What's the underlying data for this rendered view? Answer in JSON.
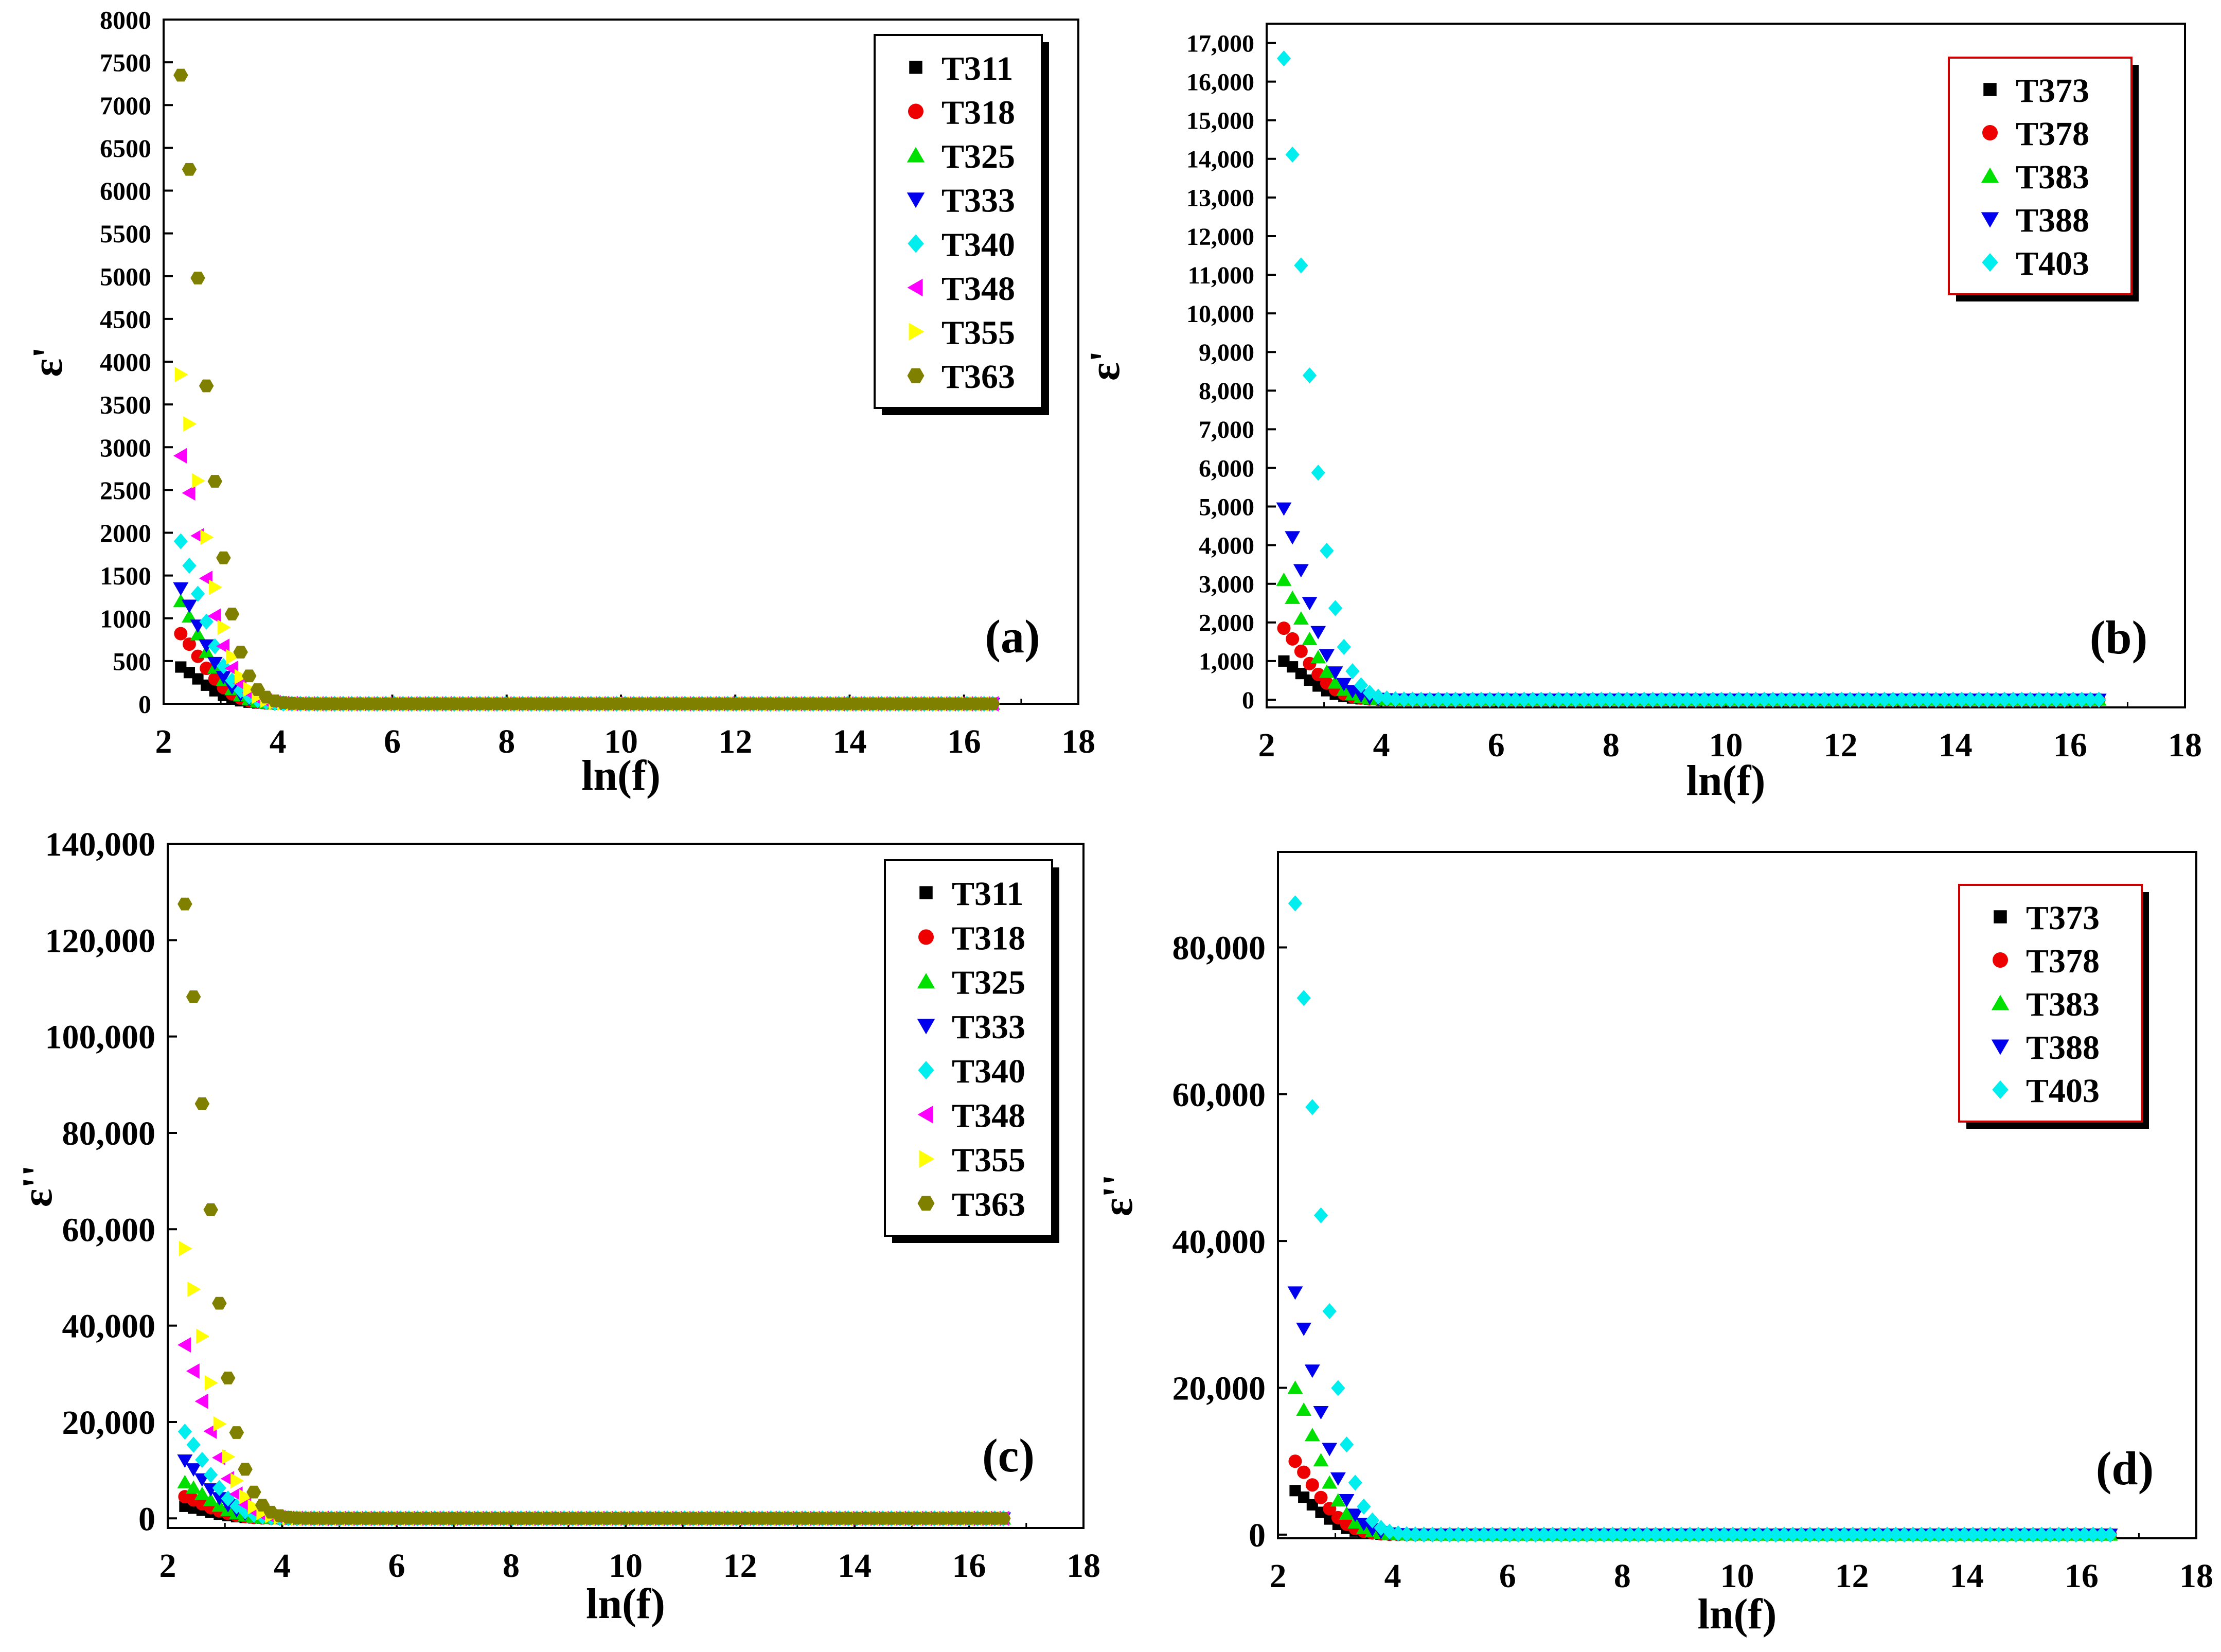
{
  "figure": {
    "panel_count": 4
  },
  "colors": {
    "T311": "#000000",
    "T318": "#ee0000",
    "T325": "#00e000",
    "T333": "#0000ee",
    "T340": "#00eeee",
    "T348": "#ff00ff",
    "T355": "#ffff00",
    "T363": "#808000",
    "T373": "#000000",
    "T378": "#ee0000",
    "T383": "#00e000",
    "T388": "#0000ee",
    "T403": "#00eeee"
  },
  "chart_data": [
    {
      "panel": "a",
      "label": "(a)",
      "type": "scatter",
      "xlabel": "ln(f)",
      "ylabel": "ε'",
      "xlim": [
        2,
        18
      ],
      "ylim": [
        0,
        8000
      ],
      "xticks": [
        "2",
        "4",
        "6",
        "8",
        "10",
        "12",
        "14",
        "16",
        "18"
      ],
      "yticks": [
        "0",
        "500",
        "1000",
        "1500",
        "2000",
        "2500",
        "3000",
        "3500",
        "4000",
        "4500",
        "5000",
        "5500",
        "6000",
        "6500",
        "7000",
        "7500",
        "8000"
      ],
      "legend_position": "top-right",
      "x_range": [
        2.3,
        16.5
      ],
      "series": [
        {
          "name": "T311",
          "marker": "square",
          "color": "#000000",
          "peak": 430
        },
        {
          "name": "T318",
          "marker": "circle",
          "color": "#ee0000",
          "peak": 820
        },
        {
          "name": "T325",
          "marker": "triangle",
          "color": "#00e000",
          "peak": 1200
        },
        {
          "name": "T333",
          "marker": "tri-down",
          "color": "#0000ee",
          "peak": 1350
        },
        {
          "name": "T340",
          "marker": "diamond",
          "color": "#00eeee",
          "peak": 1900
        },
        {
          "name": "T348",
          "marker": "tri-left",
          "color": "#ff00ff",
          "peak": 2900
        },
        {
          "name": "T355",
          "marker": "tri-right",
          "color": "#ffff00",
          "peak": 3850
        },
        {
          "name": "T363",
          "marker": "hexagon",
          "color": "#808000",
          "peak": 7350
        }
      ]
    },
    {
      "panel": "b",
      "label": "(b)",
      "type": "scatter",
      "xlabel": "ln(f)",
      "ylabel": "ε'",
      "xlim": [
        2,
        18
      ],
      "ylim": [
        -200,
        17500
      ],
      "xticks": [
        "2",
        "4",
        "6",
        "8",
        "10",
        "12",
        "14",
        "16",
        "18"
      ],
      "yticks": [
        "0",
        "1,000",
        "2,000",
        "3,000",
        "4,000",
        "5,000",
        "6,000",
        "7,000",
        "8,000",
        "9,000",
        "10,000",
        "11,000",
        "12,000",
        "13,000",
        "14,000",
        "15,000",
        "16,000",
        "17,000"
      ],
      "legend_position": "top-right",
      "x_range": [
        2.3,
        16.5
      ],
      "series": [
        {
          "name": "T373",
          "marker": "square",
          "color": "#000000",
          "peak": 1000
        },
        {
          "name": "T378",
          "marker": "circle",
          "color": "#ee0000",
          "peak": 1850
        },
        {
          "name": "T383",
          "marker": "triangle",
          "color": "#00e000",
          "peak": 3100
        },
        {
          "name": "T388",
          "marker": "tri-down",
          "color": "#0000ee",
          "peak": 4950
        },
        {
          "name": "T403",
          "marker": "diamond",
          "color": "#00eeee",
          "peak": 16600
        }
      ]
    },
    {
      "panel": "c",
      "label": "(c)",
      "type": "scatter",
      "xlabel": "ln(f)",
      "ylabel": "ε''",
      "xlim": [
        2,
        18
      ],
      "ylim": [
        -2000,
        140000
      ],
      "xticks": [
        "2",
        "4",
        "6",
        "8",
        "10",
        "12",
        "14",
        "16",
        "18"
      ],
      "yticks": [
        "0",
        "20,000",
        "40,000",
        "60,000",
        "80,000",
        "100,000",
        "120,000",
        "140,000"
      ],
      "legend_position": "top-right",
      "x_range": [
        2.3,
        16.6
      ],
      "series": [
        {
          "name": "T311",
          "marker": "square",
          "color": "#000000",
          "peak": 2500
        },
        {
          "name": "T318",
          "marker": "circle",
          "color": "#ee0000",
          "peak": 4500
        },
        {
          "name": "T325",
          "marker": "triangle",
          "color": "#00e000",
          "peak": 7500
        },
        {
          "name": "T333",
          "marker": "tri-down",
          "color": "#0000ee",
          "peak": 12000
        },
        {
          "name": "T340",
          "marker": "diamond",
          "color": "#00eeee",
          "peak": 18000
        },
        {
          "name": "T348",
          "marker": "tri-left",
          "color": "#ff00ff",
          "peak": 36000
        },
        {
          "name": "T355",
          "marker": "tri-right",
          "color": "#ffff00",
          "peak": 56000
        },
        {
          "name": "T363",
          "marker": "hexagon",
          "color": "#808000",
          "peak": 127500
        }
      ]
    },
    {
      "panel": "d",
      "label": "(d)",
      "type": "scatter",
      "xlabel": "ln(f)",
      "ylabel": "ε''",
      "xlim": [
        2,
        18
      ],
      "ylim": [
        -500,
        93000
      ],
      "xticks": [
        "2",
        "4",
        "6",
        "8",
        "10",
        "12",
        "14",
        "16",
        "18"
      ],
      "yticks": [
        "0",
        "20,000",
        "40,000",
        "60,000",
        "80,000"
      ],
      "legend_position": "top-right",
      "x_range": [
        2.3,
        16.5
      ],
      "series": [
        {
          "name": "T373",
          "marker": "square",
          "color": "#000000",
          "peak": 6000
        },
        {
          "name": "T378",
          "marker": "circle",
          "color": "#ee0000",
          "peak": 10000
        },
        {
          "name": "T383",
          "marker": "triangle",
          "color": "#00e000",
          "peak": 20000
        },
        {
          "name": "T388",
          "marker": "tri-down",
          "color": "#0000ee",
          "peak": 33000
        },
        {
          "name": "T403",
          "marker": "diamond",
          "color": "#00eeee",
          "peak": 86000
        }
      ]
    }
  ]
}
